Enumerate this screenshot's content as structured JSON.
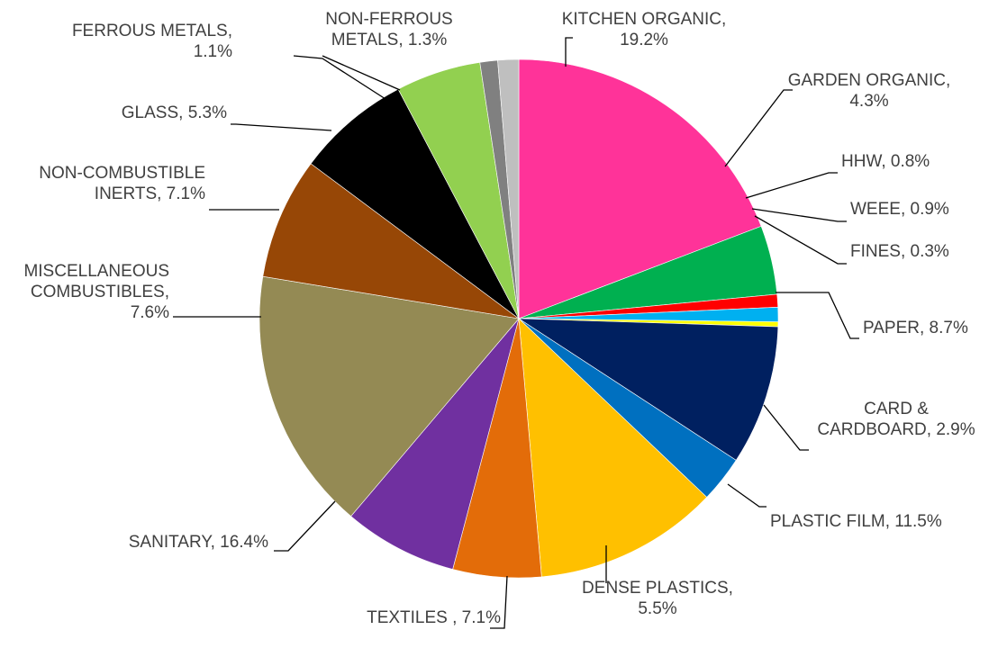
{
  "chart_data": {
    "type": "pie",
    "title": "",
    "unit": "%",
    "start_angle_deg": 0,
    "direction": "clockwise",
    "legend": "none",
    "slices": [
      {
        "name": "KITCHEN ORGANIC",
        "value": 19.2,
        "color": "#ff3399",
        "label_lines": [
          "KITCHEN ORGANIC,",
          "19.2%"
        ]
      },
      {
        "name": "GARDEN ORGANIC",
        "value": 4.3,
        "color": "#00b050",
        "label_lines": [
          "GARDEN ORGANIC,",
          "4.3%"
        ]
      },
      {
        "name": "HHW",
        "value": 0.8,
        "color": "#ff0000",
        "label_lines": [
          "HHW, 0.8%"
        ]
      },
      {
        "name": "WEEE",
        "value": 0.9,
        "color": "#00b0f0",
        "label_lines": [
          "WEEE, 0.9%"
        ]
      },
      {
        "name": "FINES",
        "value": 0.3,
        "color": "#ffff00",
        "label_lines": [
          "FINES, 0.3%"
        ]
      },
      {
        "name": "PAPER",
        "value": 8.7,
        "color": "#002060",
        "label_lines": [
          "PAPER, 8.7%"
        ]
      },
      {
        "name": "CARD & CARDBOARD",
        "value": 2.9,
        "color": "#0070c0",
        "label_lines": [
          "CARD &",
          "CARDBOARD, 2.9%"
        ]
      },
      {
        "name": "PLASTIC FILM",
        "value": 11.5,
        "color": "#ffc000",
        "label_lines": [
          "PLASTIC FILM, 11.5%"
        ]
      },
      {
        "name": "DENSE PLASTICS",
        "value": 5.5,
        "color": "#e36c09",
        "label_lines": [
          "DENSE PLASTICS,",
          "5.5%"
        ]
      },
      {
        "name": "TEXTILES",
        "value": 7.1,
        "color": "#7030a0",
        "label_lines": [
          "TEXTILES , 7.1%"
        ]
      },
      {
        "name": "SANITARY",
        "value": 16.4,
        "color": "#948a54",
        "label_lines": [
          "SANITARY, 16.4%"
        ]
      },
      {
        "name": "MISCELLANEOUS COMBUSTIBLES",
        "value": 7.6,
        "color": "#974706",
        "label_lines": [
          "MISCELLANEOUS",
          "COMBUSTIBLES,",
          "7.6%"
        ]
      },
      {
        "name": "NON-COMBUSTIBLE INERTS",
        "value": 7.1,
        "color": "#000000",
        "label_lines": [
          "NON-COMBUSTIBLE",
          "INERTS, 7.1%"
        ]
      },
      {
        "name": "GLASS",
        "value": 5.3,
        "color": "#92d050",
        "label_lines": [
          "GLASS, 5.3%"
        ]
      },
      {
        "name": "FERROUS METALS",
        "value": 1.1,
        "color": "#808080",
        "label_lines": [
          "FERROUS METALS,",
          "1.1%"
        ]
      },
      {
        "name": "NON-FERROUS METALS",
        "value": 1.3,
        "color": "#bfbfbf",
        "label_lines": [
          "NON-FERROUS",
          "METALS, 1.3%"
        ]
      }
    ]
  }
}
